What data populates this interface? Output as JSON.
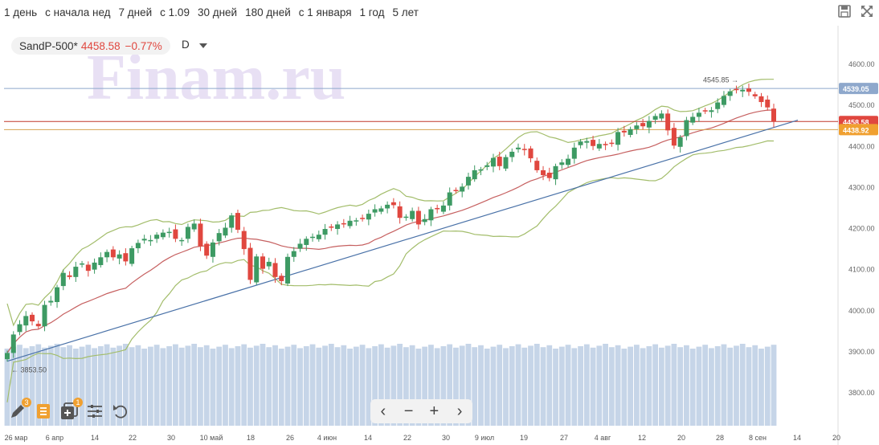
{
  "periods": [
    "1 день",
    "с начала нед",
    "7 дней",
    "с 1.09",
    "30 дней",
    "180 дней",
    "с 1 января",
    "1 год",
    "5 лет"
  ],
  "top_icons": [
    "save-icon",
    "expand-icon"
  ],
  "instrument": {
    "name": "SandP-500*",
    "price": "4458.58",
    "change": "−0.77%",
    "period": "D"
  },
  "watermark": "Finam.ru",
  "nav": {
    "prev": "‹",
    "zoom_out": "−",
    "zoom_in": "+",
    "next": "›"
  },
  "tools": [
    "pencil-icon",
    "list-icon",
    "add-indicator-icon",
    "settings-sliders-icon",
    "undo-icon"
  ],
  "tool_badges": [
    "3",
    "",
    "1",
    "",
    ""
  ],
  "colors": {
    "up": "#3d9a63",
    "down": "#e0473f",
    "bands": "#a3bd6b",
    "ma": "#c66060",
    "trend": "#4a72a8",
    "volume": "#c6d5e8"
  },
  "chart_data": {
    "type": "candlestick",
    "ylim": [
      3700,
      4640
    ],
    "yticks": [
      "3800.00",
      "3900.00",
      "4000.00",
      "4100.00",
      "4200.00",
      "4300.00",
      "4400.00",
      "4500.00",
      "4600.00"
    ],
    "xticks": [
      "26 мар",
      "6 апр",
      "14",
      "22",
      "30",
      "10 май",
      "18",
      "26",
      "4 июн",
      "14",
      "22",
      "30",
      "9 июл",
      "19",
      "27",
      "4 авг",
      "12",
      "20",
      "28",
      "8 сен",
      "14",
      "20"
    ],
    "closes": [
      3895,
      3940,
      3965,
      3985,
      3972,
      3960,
      4012,
      4022,
      4055,
      4090,
      4080,
      4105,
      4113,
      4095,
      4115,
      4128,
      4141,
      4128,
      4135,
      4118,
      4150,
      4163,
      4173,
      4170,
      4183,
      4188,
      4190,
      4173,
      4170,
      4202,
      4210,
      4155,
      4132,
      4164,
      4187,
      4200,
      4230,
      4195,
      4148,
      4073,
      4130,
      4100,
      4117,
      4080,
      4070,
      4129,
      4143,
      4161,
      4173,
      4178,
      4183,
      4197,
      4200,
      4208,
      4210,
      4217,
      4218,
      4223,
      4234,
      4245,
      4247,
      4256,
      4255,
      4224,
      4227,
      4241,
      4208,
      4221,
      4245,
      4245,
      4254,
      4286,
      4291,
      4300,
      4324,
      4340,
      4342,
      4352,
      4370,
      4350,
      4372,
      4385,
      4395,
      4390,
      4369,
      4340,
      4328,
      4321,
      4350,
      4359,
      4368,
      4395,
      4410,
      4411,
      4399,
      4404,
      4401,
      4405,
      4433,
      4432,
      4440,
      4449,
      4447,
      4460,
      4472,
      4478,
      4437,
      4400,
      4420,
      4462,
      4470,
      4480,
      4485,
      4486,
      4505,
      4521,
      4532,
      4535,
      4536,
      4531,
      4520,
      4506,
      4493,
      4458.58
    ],
    "last_close_label": "4458.58",
    "reference_lines": [
      {
        "value": 4539.05,
        "label": "4539.05"
      },
      {
        "value": 4458.58,
        "label": "4458.58"
      },
      {
        "value": 4438.92,
        "label": "4438.92"
      }
    ],
    "annotations": [
      {
        "text": "4545.85",
        "value": 4545.85
      },
      {
        "text": "3853.50",
        "value": 3853.5
      }
    ],
    "trendline": [
      3875,
      4462
    ]
  }
}
